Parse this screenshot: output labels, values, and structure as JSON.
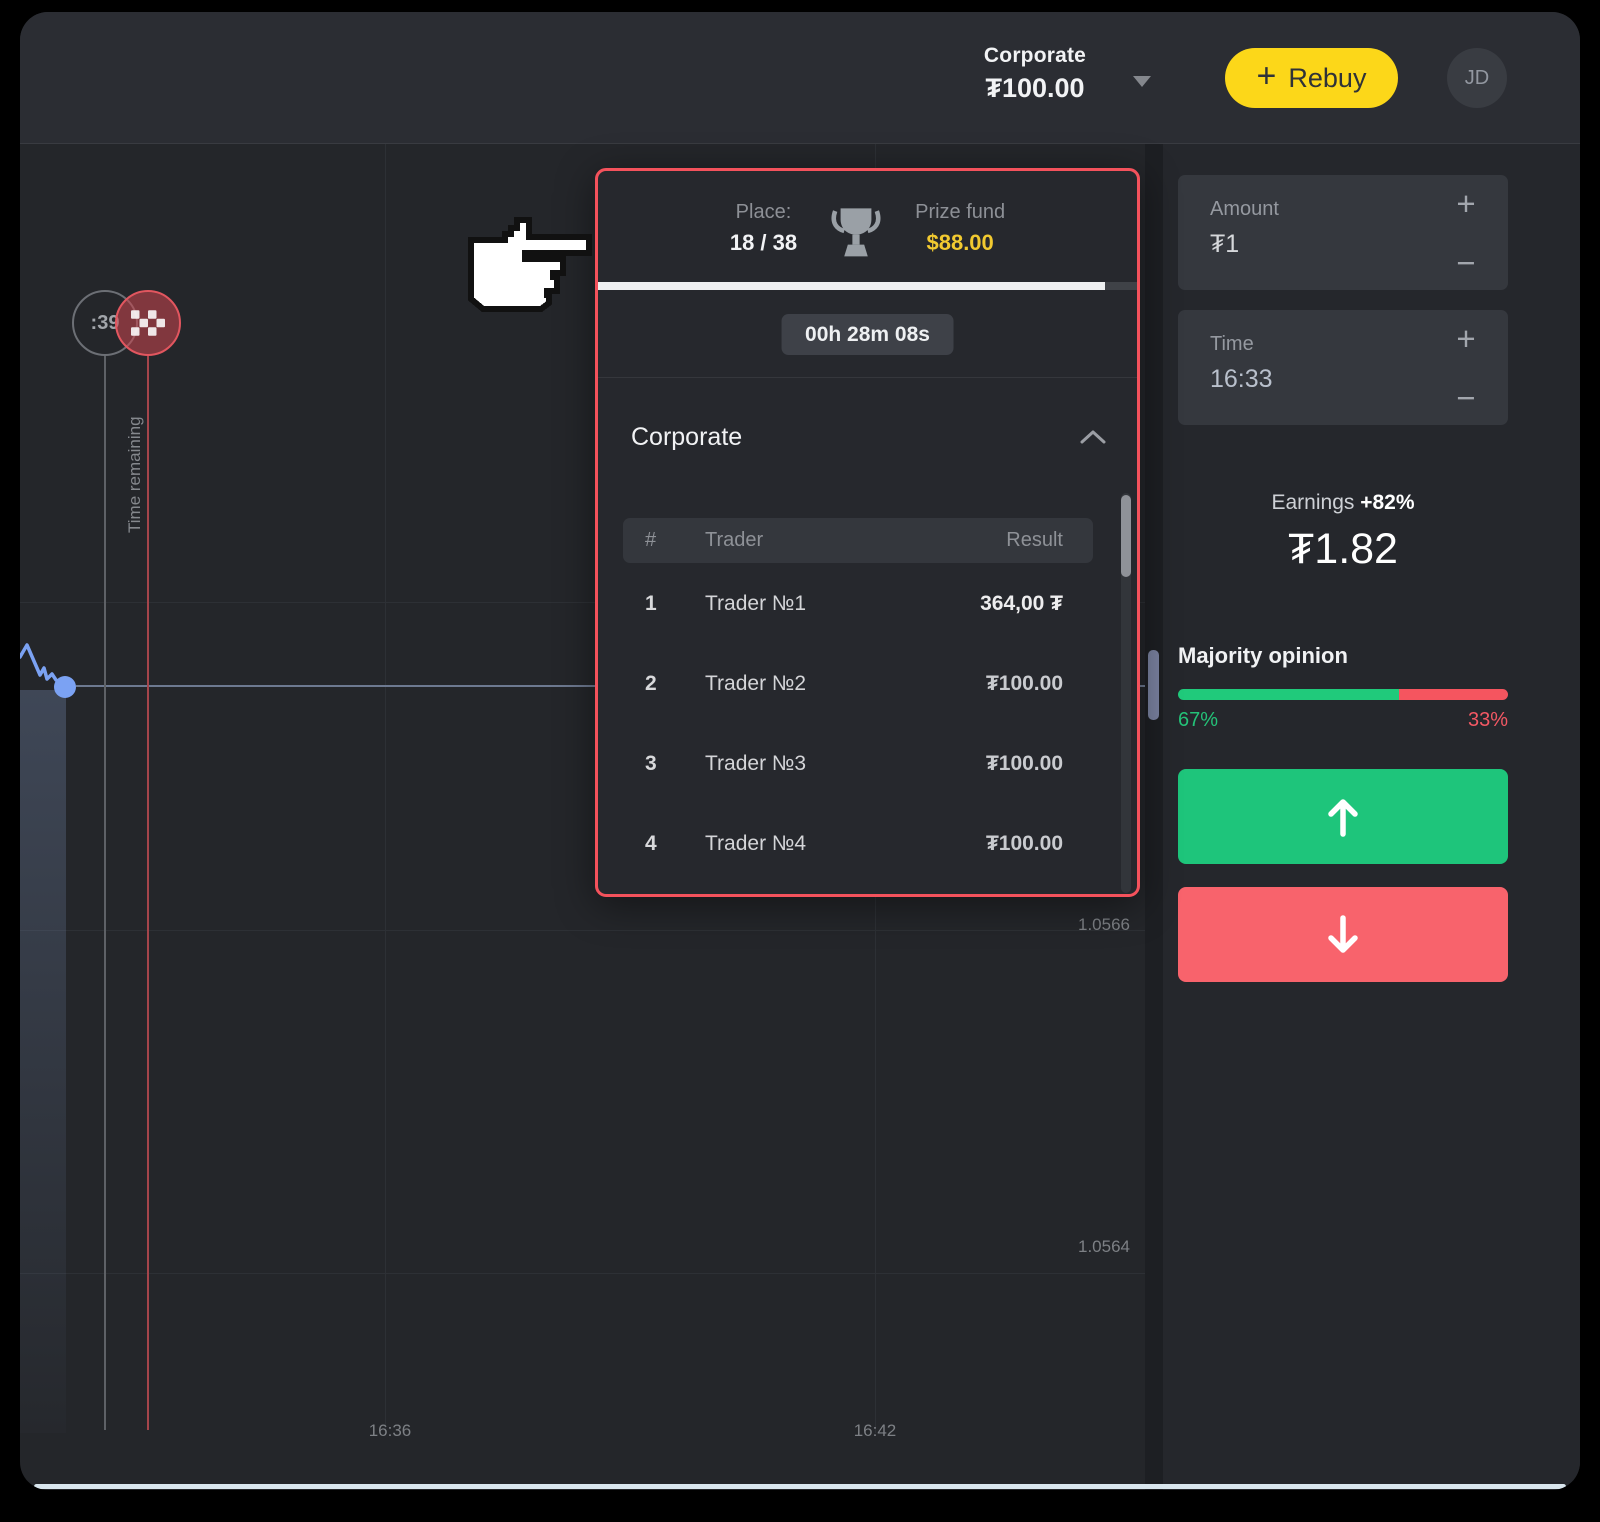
{
  "header": {
    "account": {
      "name": "Corporate",
      "balance": "₮100.00"
    },
    "rebuy": {
      "plus": "+",
      "label": "Rebuy"
    },
    "avatar_initials": "JD"
  },
  "tournament": {
    "place_label": "Place:",
    "place_value": "18 / 38",
    "prize_label": "Prize fund",
    "prize_value": "$88.00",
    "progress_percent": 94,
    "time_left": "00h 28m 08s",
    "section_title": "Corporate",
    "table": {
      "col_rank": "#",
      "col_trader": "Trader",
      "col_result": "Result",
      "rows": [
        {
          "rank": "1",
          "trader": "Trader №1",
          "result": "364,00 ₮"
        },
        {
          "rank": "2",
          "trader": "Trader №2",
          "result": "₮100.00"
        },
        {
          "rank": "3",
          "trader": "Trader №3",
          "result": "₮100.00"
        },
        {
          "rank": "4",
          "trader": "Trader №4",
          "result": "₮100.00"
        }
      ]
    }
  },
  "controls": {
    "amount": {
      "label": "Amount",
      "value": "₮1"
    },
    "time": {
      "label": "Time",
      "value": "16:33"
    },
    "plus_glyph": "+",
    "minus_glyph": "−",
    "earnings": {
      "label": "Earnings",
      "percent": "+82%",
      "value": "₮1.82"
    },
    "majority": {
      "label": "Majority opinion",
      "up_pct": 67,
      "down_pct": 33,
      "up_text": "67%",
      "down_text": "33%"
    }
  },
  "chart": {
    "countdown": ":39",
    "time_remaining_label": "Time remaining",
    "price_labels": [
      "1.0566",
      "1.0564"
    ],
    "time_labels": [
      "16:36",
      "16:42"
    ]
  },
  "colors": {
    "accent_yellow": "#fcd719",
    "up_green": "#1ec57b",
    "down_red": "#f8636c",
    "popup_border": "#f4525c",
    "prize_gold": "#f2ca30",
    "line_blue": "#7ba2f3"
  }
}
